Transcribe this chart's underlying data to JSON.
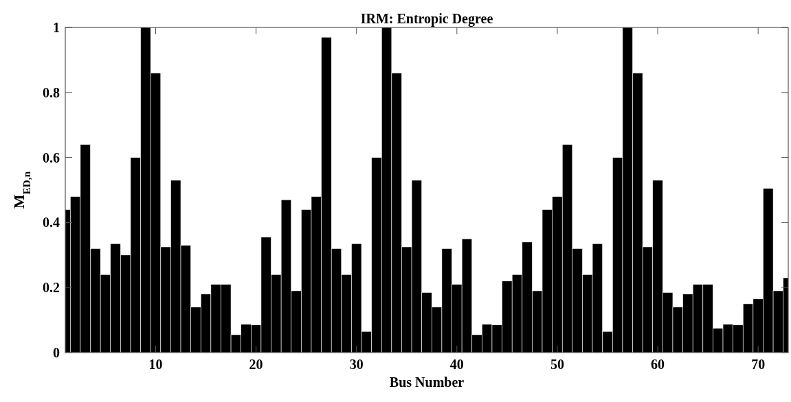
{
  "chart_data": {
    "type": "bar",
    "title": "IRM: Entropic Degree",
    "xlabel": "Bus Number",
    "ylabel": "M$_{ED,n}$",
    "color": "#000000",
    "x": [
      1,
      2,
      3,
      4,
      5,
      6,
      7,
      8,
      9,
      10,
      11,
      12,
      13,
      14,
      15,
      16,
      17,
      18,
      19,
      20,
      21,
      22,
      23,
      24,
      25,
      26,
      27,
      28,
      29,
      30,
      31,
      32,
      33,
      34,
      35,
      36,
      37,
      38,
      39,
      40,
      41,
      42,
      43,
      44,
      45,
      46,
      47,
      48,
      49,
      50,
      51,
      52,
      53,
      54,
      55,
      56,
      57,
      58,
      59,
      60,
      61,
      62,
      63,
      64,
      65,
      66,
      67,
      68,
      69,
      70,
      71,
      72,
      73
    ],
    "values": [
      0.44,
      0.48,
      0.64,
      0.32,
      0.24,
      0.335,
      0.3,
      0.6,
      1.0,
      0.86,
      0.325,
      0.53,
      0.33,
      0.14,
      0.18,
      0.21,
      0.21,
      0.055,
      0.087,
      0.085,
      0.355,
      0.24,
      0.47,
      0.19,
      0.44,
      0.48,
      0.97,
      0.32,
      0.24,
      0.335,
      0.065,
      0.6,
      1.0,
      0.86,
      0.325,
      0.53,
      0.185,
      0.14,
      0.32,
      0.21,
      0.35,
      0.055,
      0.087,
      0.085,
      0.22,
      0.24,
      0.34,
      0.19,
      0.44,
      0.48,
      0.64,
      0.32,
      0.24,
      0.335,
      0.065,
      0.6,
      1.0,
      0.86,
      0.325,
      0.53,
      0.185,
      0.14,
      0.18,
      0.21,
      0.21,
      0.075,
      0.087,
      0.085,
      0.15,
      0.165,
      0.505,
      0.19,
      0.23
    ],
    "xlim": [
      1,
      73
    ],
    "xticks": [
      10,
      20,
      30,
      40,
      50,
      60,
      70
    ],
    "ylim": [
      0,
      1
    ],
    "yticks": [
      0,
      0.2,
      0.4,
      0.6,
      0.8,
      1
    ],
    "grid": false
  }
}
